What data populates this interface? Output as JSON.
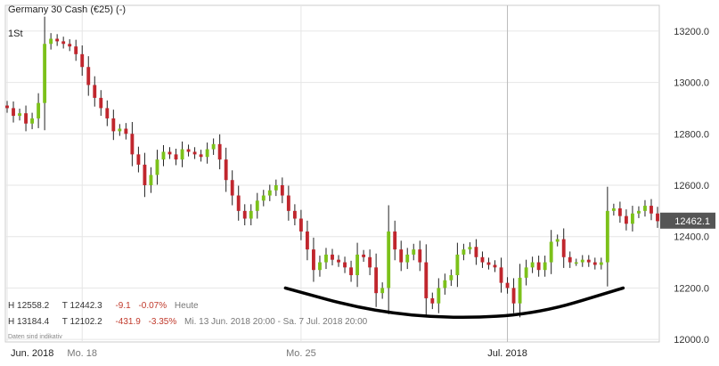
{
  "header": {
    "title": "Germany 30 Cash (€25) (-)",
    "interval": "1St"
  },
  "stats": {
    "today": {
      "h_label": "H",
      "high": "12558.2",
      "t_label": "T",
      "low": "12442.3",
      "change": "-9.1",
      "change_pct": "-0.07%",
      "period": "Heute"
    },
    "range": {
      "h_label": "H",
      "high": "13184.4",
      "t_label": "T",
      "low": "12102.2",
      "change": "-431.9",
      "change_pct": "-3.35%",
      "period": "Mi. 13 Jun. 2018 20:00 - Sa. 7 Jul. 2018 20:00"
    }
  },
  "note": "Daten sind indikativ",
  "last_price": "12462.1",
  "colors": {
    "up": "#7cc11a",
    "down": "#c0262d",
    "wick": "#222222",
    "grid": "#e6e6e6",
    "price_tag": "#555555",
    "annotation": "#000000"
  },
  "chart_data": {
    "type": "candlestick",
    "title": "Germany 30 Cash (€25) (-)",
    "y_ticks": [
      "12000.0",
      "12200.0",
      "12400.0",
      "12600.0",
      "12800.0",
      "13000.0",
      "13200.0"
    ],
    "ylim": [
      11990,
      13300
    ],
    "x_ticks": [
      "Jun. 2018",
      "Mo. 18",
      "Mo. 25",
      "Jul. 2018"
    ],
    "x_tick_index": [
      0,
      12,
      47,
      80
    ],
    "crosshair_index": 80,
    "grid": true,
    "closes": [
      12900,
      12870,
      12880,
      12840,
      12860,
      12920,
      13150,
      13170,
      13160,
      13150,
      13140,
      13110,
      13060,
      12990,
      12940,
      12900,
      12860,
      12810,
      12820,
      12800,
      12720,
      12680,
      12600,
      12640,
      12700,
      12730,
      12720,
      12700,
      12740,
      12730,
      12720,
      12710,
      12740,
      12760,
      12700,
      12620,
      12560,
      12500,
      12470,
      12500,
      12540,
      12560,
      12580,
      12600,
      12560,
      12500,
      12470,
      12420,
      12350,
      12270,
      12300,
      12330,
      12310,
      12300,
      12280,
      12250,
      12330,
      12320,
      12280,
      12180,
      12200,
      12420,
      12350,
      12300,
      12330,
      12350,
      12300,
      12160,
      12140,
      12200,
      12230,
      12250,
      12330,
      12350,
      12360,
      12320,
      12300,
      12290,
      12280,
      12220,
      12200,
      12140,
      12240,
      12280,
      12300,
      12270,
      12300,
      12380,
      12390,
      12320,
      12300,
      12300,
      12310,
      12300,
      12290,
      12300,
      12500,
      12510,
      12480,
      12450,
      12490,
      12500,
      12520,
      12490,
      12460
    ],
    "trendline": [
      [
        89,
        12200
      ],
      [
        116,
        12110
      ],
      [
        143,
        12080
      ],
      [
        170,
        12100
      ],
      [
        197,
        12200
      ]
    ],
    "last": 12462.1
  }
}
